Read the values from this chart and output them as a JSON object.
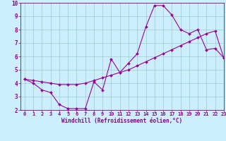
{
  "xlabel": "Windchill (Refroidissement éolien,°C)",
  "xlim": [
    -0.5,
    23
  ],
  "ylim": [
    2,
    10
  ],
  "xticks": [
    0,
    1,
    2,
    3,
    4,
    5,
    6,
    7,
    8,
    9,
    10,
    11,
    12,
    13,
    14,
    15,
    16,
    17,
    18,
    19,
    20,
    21,
    22,
    23
  ],
  "yticks": [
    2,
    3,
    4,
    5,
    6,
    7,
    8,
    9,
    10
  ],
  "line1_x": [
    0,
    1,
    2,
    3,
    4,
    5,
    6,
    7,
    8,
    9,
    10,
    11,
    12,
    13,
    14,
    15,
    16,
    17,
    18,
    19,
    20,
    21,
    22,
    23
  ],
  "line1_y": [
    4.3,
    4.0,
    3.5,
    3.3,
    2.4,
    2.1,
    2.1,
    2.1,
    4.1,
    3.5,
    5.8,
    4.8,
    5.5,
    6.2,
    8.2,
    9.8,
    9.8,
    9.1,
    8.0,
    7.7,
    8.0,
    6.5,
    6.6,
    5.9
  ],
  "line2_x": [
    0,
    1,
    2,
    3,
    4,
    5,
    6,
    7,
    8,
    9,
    10,
    11,
    12,
    13,
    14,
    15,
    16,
    17,
    18,
    19,
    20,
    21,
    22,
    23
  ],
  "line2_y": [
    4.3,
    4.2,
    4.1,
    4.0,
    3.9,
    3.9,
    3.9,
    4.0,
    4.2,
    4.4,
    4.6,
    4.8,
    5.0,
    5.3,
    5.6,
    5.9,
    6.2,
    6.5,
    6.8,
    7.1,
    7.4,
    7.7,
    7.9,
    5.9
  ],
  "line_color": "#990099",
  "bg_color": "#cceeff",
  "grid_color": "#99cccc",
  "tick_color": "#880088",
  "label_color": "#880088",
  "marker": "D",
  "marker_size": 2.0,
  "line_width": 0.8,
  "tick_fontsize": 5.0,
  "xlabel_fontsize": 5.5
}
